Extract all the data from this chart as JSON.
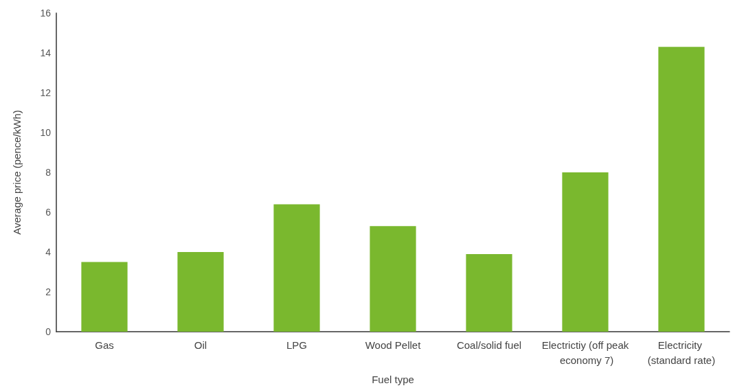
{
  "chart_data": {
    "type": "bar",
    "xlabel": "Fuel type",
    "ylabel": "Average price (pence/kWh)",
    "categories": [
      "Gas",
      "Oil",
      "LPG",
      "Wood Pellet",
      "Coal/solid fuel",
      "Electrictiy (off peak economy 7)",
      "Electricity (standard rate)"
    ],
    "values": [
      3.5,
      4.0,
      6.4,
      5.3,
      3.9,
      8.0,
      14.3
    ],
    "color": "#7ab82e",
    "ylim": [
      0,
      16
    ],
    "yticks": [
      0,
      2,
      4,
      6,
      8,
      10,
      12,
      14,
      16
    ],
    "grid": false
  }
}
